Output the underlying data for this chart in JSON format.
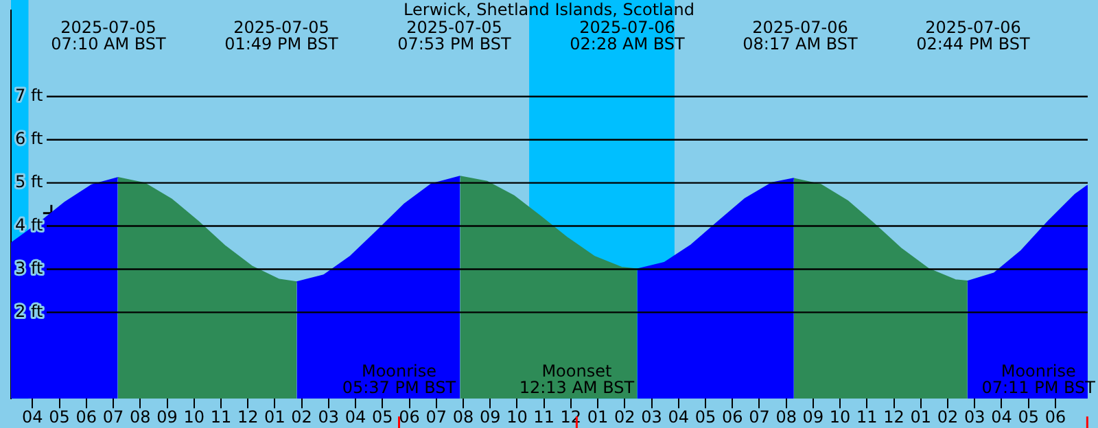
{
  "chart_data": {
    "type": "area",
    "title": "Lerwick, Shetland Islands, Scotland",
    "x": [
      "2025-07-05T03:12",
      "2025-07-05T04:12",
      "2025-07-05T05:12",
      "2025-07-05T06:12",
      "2025-07-05T07:10",
      "2025-07-05T08:10",
      "2025-07-05T09:10",
      "2025-07-05T10:10",
      "2025-07-05T11:10",
      "2025-07-05T12:10",
      "2025-07-05T13:10",
      "2025-07-05T13:49",
      "2025-07-05T14:49",
      "2025-07-05T15:49",
      "2025-07-05T16:49",
      "2025-07-05T17:49",
      "2025-07-05T18:49",
      "2025-07-05T19:53",
      "2025-07-05T20:53",
      "2025-07-05T21:53",
      "2025-07-05T22:53",
      "2025-07-05T23:53",
      "2025-07-06T00:53",
      "2025-07-06T01:53",
      "2025-07-06T02:28",
      "2025-07-06T03:28",
      "2025-07-06T04:28",
      "2025-07-06T05:28",
      "2025-07-06T06:28",
      "2025-07-06T07:28",
      "2025-07-06T08:17",
      "2025-07-06T09:17",
      "2025-07-06T10:17",
      "2025-07-06T11:17",
      "2025-07-06T12:17",
      "2025-07-06T13:17",
      "2025-07-06T14:17",
      "2025-07-06T14:44",
      "2025-07-06T15:44",
      "2025-07-06T16:44",
      "2025-07-06T17:44",
      "2025-07-06T18:44",
      "2025-07-06T19:12"
    ],
    "series": [
      {
        "color": "#0000ff",
        "values": [
          3.6,
          4.05,
          4.55,
          4.95,
          5.12,
          null,
          null,
          null,
          null,
          null,
          null,
          2.7,
          2.86,
          3.3,
          3.9,
          4.51,
          4.97,
          5.15,
          null,
          null,
          null,
          null,
          null,
          null,
          3.0,
          3.15,
          3.56,
          4.1,
          4.63,
          5.0,
          5.1,
          null,
          null,
          null,
          null,
          null,
          null,
          2.72,
          2.91,
          3.43,
          4.11,
          4.73,
          4.94
        ]
      },
      {
        "color": "#2e8b57",
        "values": [
          null,
          null,
          null,
          null,
          5.12,
          4.99,
          4.62,
          4.1,
          3.53,
          3.06,
          2.76,
          2.7,
          null,
          null,
          null,
          null,
          null,
          5.15,
          5.03,
          4.7,
          4.22,
          3.72,
          3.29,
          3.04,
          3.0,
          null,
          null,
          null,
          null,
          null,
          5.1,
          4.96,
          4.58,
          4.04,
          3.47,
          3.01,
          2.75,
          2.72,
          null,
          null,
          null,
          null,
          null
        ]
      },
      {
        "type": "scatter",
        "color": "#000000",
        "marker": "cross",
        "x": [
          "2025-07-05T04:42"
        ],
        "values": [
          4.3
        ]
      }
    ],
    "xlim": [
      "2025-07-05T03:12",
      "2025-07-06T19:12"
    ],
    "xticks": [
      {
        "value": "2025-07-05T04:00",
        "label": "04"
      },
      {
        "value": "2025-07-05T05:00",
        "label": "05"
      },
      {
        "value": "2025-07-05T06:00",
        "label": "06"
      },
      {
        "value": "2025-07-05T07:00",
        "label": "07"
      },
      {
        "value": "2025-07-05T08:00",
        "label": "08"
      },
      {
        "value": "2025-07-05T09:00",
        "label": "09"
      },
      {
        "value": "2025-07-05T10:00",
        "label": "10"
      },
      {
        "value": "2025-07-05T11:00",
        "label": "11"
      },
      {
        "value": "2025-07-05T12:00",
        "label": "12"
      },
      {
        "value": "2025-07-05T13:00",
        "label": "01"
      },
      {
        "value": "2025-07-05T14:00",
        "label": "02"
      },
      {
        "value": "2025-07-05T15:00",
        "label": "03"
      },
      {
        "value": "2025-07-05T16:00",
        "label": "04"
      },
      {
        "value": "2025-07-05T17:00",
        "label": "05"
      },
      {
        "value": "2025-07-05T18:00",
        "label": "06"
      },
      {
        "value": "2025-07-05T19:00",
        "label": "07"
      },
      {
        "value": "2025-07-05T20:00",
        "label": "08"
      },
      {
        "value": "2025-07-05T21:00",
        "label": "09"
      },
      {
        "value": "2025-07-05T22:00",
        "label": "10"
      },
      {
        "value": "2025-07-05T23:00",
        "label": "11"
      },
      {
        "value": "2025-07-06T00:00",
        "label": "12"
      },
      {
        "value": "2025-07-06T01:00",
        "label": "01"
      },
      {
        "value": "2025-07-06T02:00",
        "label": "02"
      },
      {
        "value": "2025-07-06T03:00",
        "label": "03"
      },
      {
        "value": "2025-07-06T04:00",
        "label": "04"
      },
      {
        "value": "2025-07-06T05:00",
        "label": "05"
      },
      {
        "value": "2025-07-06T06:00",
        "label": "06"
      },
      {
        "value": "2025-07-06T07:00",
        "label": "07"
      },
      {
        "value": "2025-07-06T08:00",
        "label": "08"
      },
      {
        "value": "2025-07-06T09:00",
        "label": "09"
      },
      {
        "value": "2025-07-06T10:00",
        "label": "10"
      },
      {
        "value": "2025-07-06T11:00",
        "label": "11"
      },
      {
        "value": "2025-07-06T12:00",
        "label": "12"
      },
      {
        "value": "2025-07-06T13:00",
        "label": "01"
      },
      {
        "value": "2025-07-06T14:00",
        "label": "02"
      },
      {
        "value": "2025-07-06T15:00",
        "label": "03"
      },
      {
        "value": "2025-07-06T16:00",
        "label": "04"
      },
      {
        "value": "2025-07-06T17:00",
        "label": "05"
      },
      {
        "value": "2025-07-06T18:00",
        "label": "06"
      }
    ],
    "ylim": [
      0,
      9
    ],
    "yticks": [
      {
        "value": 2,
        "label": "2 ft"
      },
      {
        "value": 3,
        "label": "3 ft"
      },
      {
        "value": 4,
        "label": "4 ft"
      },
      {
        "value": 5,
        "label": "5 ft"
      },
      {
        "value": 6,
        "label": "6 ft"
      },
      {
        "value": 7,
        "label": "7 ft"
      }
    ],
    "grid": "y",
    "legend": false,
    "bands": [
      {
        "axis": "x",
        "from": "2025-07-05T03:12",
        "to": "2025-07-05T03:51",
        "color": "#00bfff"
      },
      {
        "axis": "x",
        "from": "2025-07-05T22:27",
        "to": "2025-07-06T03:51",
        "color": "#00bfff"
      }
    ],
    "ref_lines": [
      {
        "axis": "x",
        "value": "2025-07-05T17:37",
        "label": "Moonrise\n05:37 PM BST",
        "color": "#ff0000"
      },
      {
        "axis": "x",
        "value": "2025-07-06T00:13",
        "label": "Moonset\n12:13 AM BST",
        "color": "#ff0000"
      },
      {
        "axis": "x",
        "value": "2025-07-06T19:11",
        "label": "Moonrise\n07:11 PM BST",
        "color": "#ff0000"
      }
    ],
    "annotations": [
      "2025-07-05\n07:10 AM BST",
      "2025-07-05\n01:49 PM BST",
      "2025-07-05\n07:53 PM BST",
      "2025-07-06\n02:28 AM BST",
      "2025-07-06\n08:17 AM BST",
      "2025-07-06\n02:44 PM BST"
    ]
  }
}
